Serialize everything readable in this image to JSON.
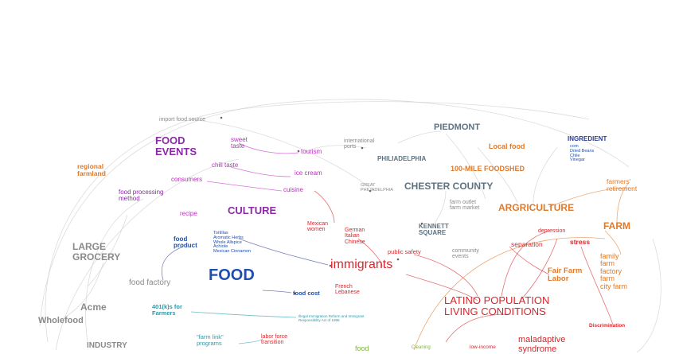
{
  "colors": {
    "purple": "#8a2aa6",
    "magenta": "#c02bc4",
    "red": "#d9262c",
    "orange": "#e07a2a",
    "blue": "#1f4fb0",
    "navy": "#2f3d8f",
    "teal": "#2a9aa8",
    "gray": "#8a8a8a",
    "slate": "#5d7280",
    "green": "#7cb73a",
    "curve": "#c9c9c9"
  },
  "nodes": {
    "import_food_source": "import food source",
    "piedmont": "PIEDMONT",
    "food_events": "FOOD\nEVENTS",
    "sweet_taste": "sweet\ntaste",
    "tourism": "tourism",
    "international_ports": "international\nports",
    "local_food": "Local food",
    "ingredient": "INGREDIENT",
    "ingredient_list": "corn\nDried Beans\nChile\nVinegar",
    "regional_farmland": "regional\nfarmland",
    "chili_taste": "chili taste",
    "philadelphia": "PHILIADELPHIA",
    "mile_foodshed": "100-MILE FOODSHED",
    "consumers": "consumers",
    "ice_cream": "ice cream",
    "great_philadelphia": "GREAT\nPHILIADELPHIA",
    "chester_county": "CHESTER COUNTY",
    "farmers_retirement": "farmers'\nretirement",
    "food_processing_method": "food processing\nmethod",
    "cuisine": "cuisine",
    "farm_outlet": "farm outlet\nfarm market",
    "recipe": "recipe",
    "culture": "CULTURE",
    "argriculture": "ARGRICULTURE",
    "mexican_women": "Mexican\nwomen",
    "german_italian_chinese": "German\nItalian\nChinese",
    "kennett_square": "KENNETT\nSQUARE",
    "farm": "FARM",
    "depression": "depression",
    "large_grocery": "LARGE\nGROCERY",
    "food_product": "food\nproduct",
    "spices": "Tortillas\nAromatic Herbs\nWhole Allspice\nAchiote\nMexican Cinnamon",
    "public_safety": "public safety",
    "community_events": "community\nevents",
    "separation": "separation",
    "stress": "stress",
    "family_farm": "family\nfarm\nfactory\nfarm\ncity farm",
    "immigrants": "immigrants",
    "fair_farm_labor": "Fair Farm\nLabor",
    "food_factory": "food factory",
    "food": "FOOD",
    "food_cost": "food cost",
    "french_lebanese": "French\nLebanese",
    "acme": "Acme",
    "wholefood": "Wholefood",
    "k401_farmers": "401(k)s for\nFarmers",
    "latino_living_conditions": "LATINO POPULATION\nLIVING CONDITIONS",
    "immigration_act": "Illegal Immigration Reform and Immigrant\nResponsibility Act of 1996",
    "discrimination": "Discrimination",
    "industry": "INDUSTRY",
    "farm_link_programs": "\"farm link\"\nprograms",
    "labor_force_transition": "labor force\ntransition",
    "food_bottom": "food",
    "cleaning": "Cleaning",
    "low_income": "low-income",
    "maladaptive_syndrome": "maladaptive\nsyndrome"
  }
}
